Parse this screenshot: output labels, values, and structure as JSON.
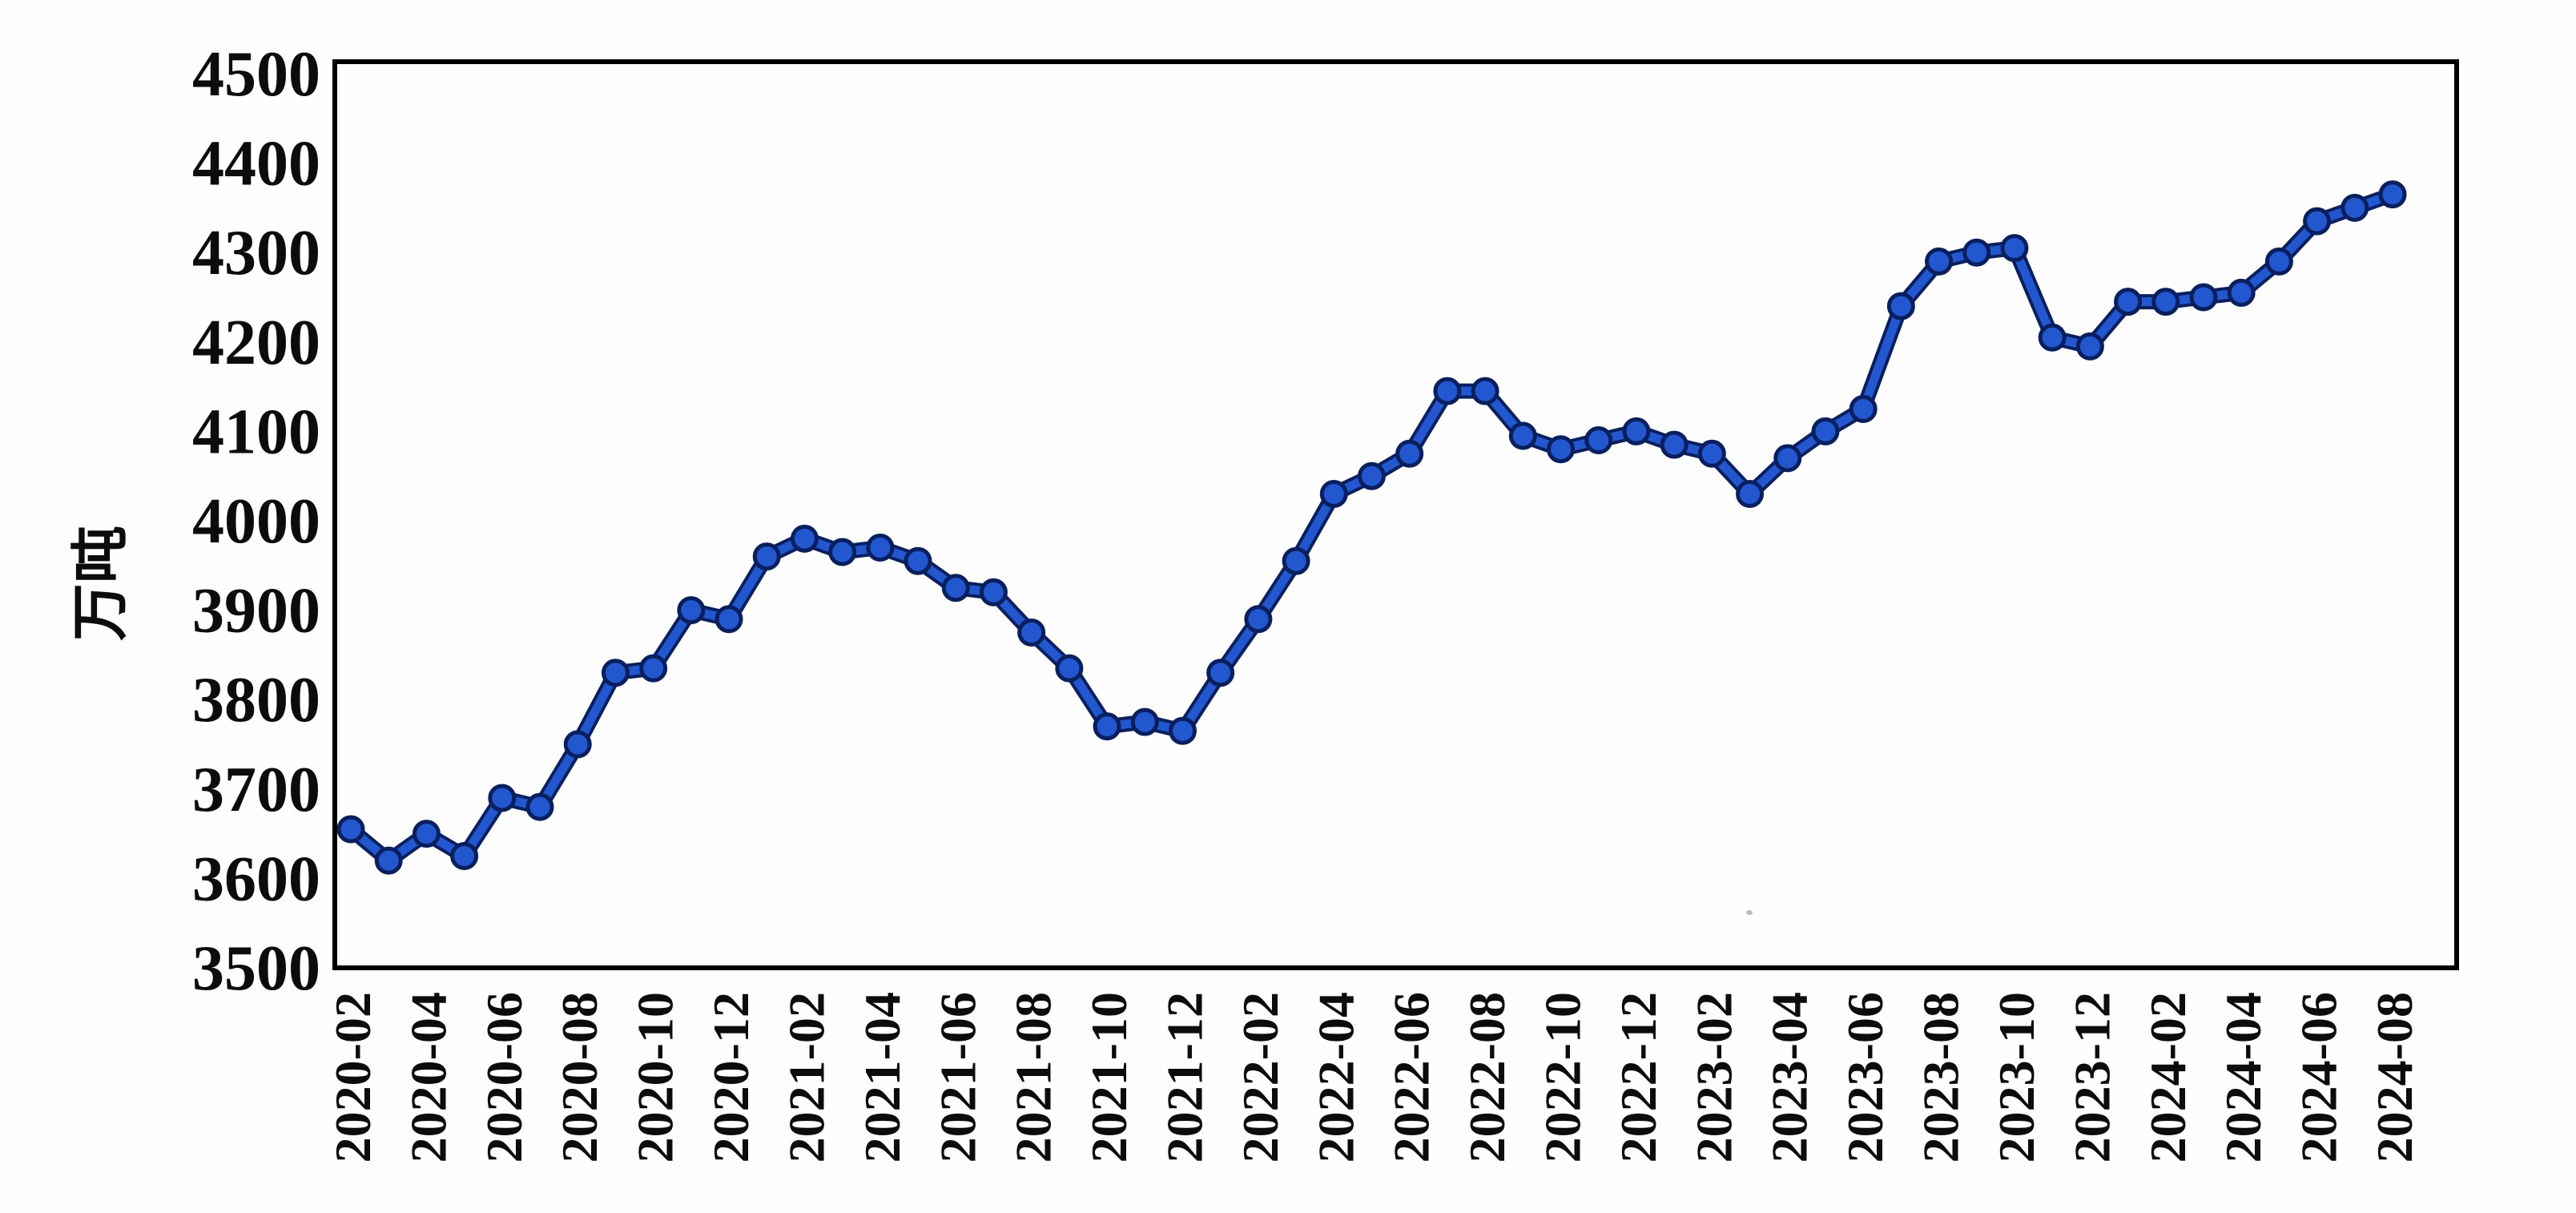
{
  "chart_data": {
    "type": "line",
    "title": "",
    "xlabel": "",
    "ylabel": "万吨",
    "ylim": [
      3500,
      4500
    ],
    "yticks": [
      3500,
      3600,
      3700,
      3800,
      3900,
      4000,
      4100,
      4200,
      4300,
      4400,
      4500
    ],
    "grid": false,
    "legend": "none",
    "line_color": "#2257cf",
    "marker_fill_color": "#2257cf",
    "marker_edge_color": "#0a1f5e",
    "axis_color": "#000000",
    "x": [
      "2020-02",
      "2020-03",
      "2020-04",
      "2020-05",
      "2020-06",
      "2020-07",
      "2020-08",
      "2020-09",
      "2020-10",
      "2020-11",
      "2020-12",
      "2021-01",
      "2021-02",
      "2021-03",
      "2021-04",
      "2021-05",
      "2021-06",
      "2021-07",
      "2021-08",
      "2021-09",
      "2021-10",
      "2021-11",
      "2021-12",
      "2022-01",
      "2022-02",
      "2022-03",
      "2022-04",
      "2022-05",
      "2022-06",
      "2022-07",
      "2022-08",
      "2022-09",
      "2022-10",
      "2022-11",
      "2022-12",
      "2023-01",
      "2023-02",
      "2023-03",
      "2023-04",
      "2023-05",
      "2023-06",
      "2023-07",
      "2023-08",
      "2023-09",
      "2023-10",
      "2023-11",
      "2023-12",
      "2024-01",
      "2024-02",
      "2024-03",
      "2024-04",
      "2024-05",
      "2024-06",
      "2024-07",
      "2024-08"
    ],
    "values": [
      3655,
      3620,
      3650,
      3625,
      3690,
      3680,
      3750,
      3830,
      3835,
      3900,
      3890,
      3960,
      3980,
      3965,
      3970,
      3955,
      3925,
      3920,
      3875,
      3835,
      3770,
      3775,
      3765,
      3830,
      3890,
      3955,
      4030,
      4050,
      4075,
      4145,
      4145,
      4095,
      4080,
      4090,
      4100,
      4085,
      4075,
      4030,
      4070,
      4100,
      4125,
      4240,
      4290,
      4300,
      4305,
      4205,
      4195,
      4245,
      4245,
      4250,
      4255,
      4290,
      4335,
      4350,
      4365
    ],
    "x_tick_labels": [
      "2020-02",
      "2020-04",
      "2020-06",
      "2020-08",
      "2020-10",
      "2020-12",
      "2021-02",
      "2021-04",
      "2021-06",
      "2021-08",
      "2021-10",
      "2021-12",
      "2022-02",
      "2022-04",
      "2022-06",
      "2022-08",
      "2022-10",
      "2022-12",
      "2023-02",
      "2023-04",
      "2023-06",
      "2023-08",
      "2023-10",
      "2023-12",
      "2024-02",
      "2024-04",
      "2024-06",
      "2024-08"
    ]
  }
}
